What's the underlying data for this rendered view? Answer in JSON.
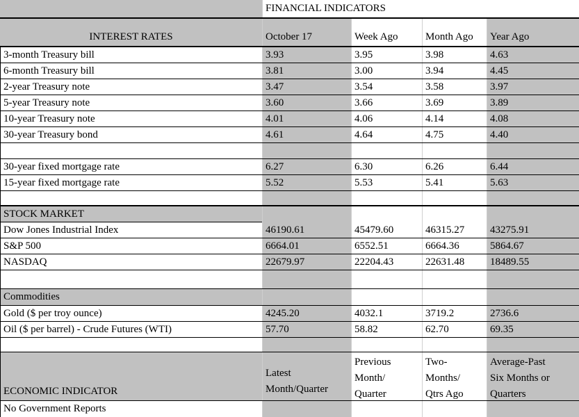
{
  "title": "FINANCIAL INDICATORS",
  "colors": {
    "cell_gray": "#c1c1c1",
    "cell_white": "#ffffff",
    "border_black": "#000000",
    "gridline": "#cfcfcf"
  },
  "header": {
    "label": "INTEREST RATES",
    "cols": [
      "October 17",
      "Week Ago",
      "Month Ago",
      "Year Ago"
    ]
  },
  "interest_rates": [
    {
      "label": "3-month Treasury bill",
      "values": [
        "3.93",
        "3.95",
        "3.98",
        "4.63"
      ]
    },
    {
      "label": "6-month Treasury bill",
      "values": [
        "3.81",
        "3.00",
        "3.94",
        "4.45"
      ]
    },
    {
      "label": "2-year Treasury note",
      "values": [
        "3.47",
        "3.54",
        "3.58",
        "3.97"
      ]
    },
    {
      "label": "5-year Treasury note",
      "values": [
        "3.60",
        "3.66",
        "3.69",
        "3.89"
      ]
    },
    {
      "label": "10-year Treasury note",
      "values": [
        "4.01",
        "4.06",
        "4.14",
        "4.08"
      ]
    },
    {
      "label": "30-year Treasury bond",
      "values": [
        "4.61",
        "4.64",
        "4.75",
        "4.40"
      ]
    }
  ],
  "mortgage_rates": [
    {
      "label": "30-year fixed mortgage rate",
      "values": [
        "6.27",
        "6.30",
        "6.26",
        "6.44"
      ]
    },
    {
      "label": "15-year fixed mortgage rate",
      "values": [
        "5.52",
        "5.53",
        "5.41",
        "5.63"
      ]
    }
  ],
  "stock_market": {
    "section_label": "STOCK MARKET",
    "rows": [
      {
        "label": "Dow Jones Industrial Index",
        "values": [
          "46190.61",
          "45479.60",
          "46315.27",
          "43275.91"
        ]
      },
      {
        "label": "S&P 500",
        "values": [
          "6664.01",
          "6552.51",
          "6664.36",
          "5864.67"
        ]
      },
      {
        "label": "NASDAQ",
        "values": [
          "22679.97",
          "22204.43",
          "22631.48",
          "18489.55"
        ]
      }
    ]
  },
  "commodities": {
    "section_label": "Commodities",
    "rows": [
      {
        "label": "Gold ($ per troy ounce)",
        "values": [
          "4245.20",
          "4032.1",
          "3719.2",
          "2736.6"
        ]
      },
      {
        "label": "Oil ($ per barrel) - Crude Futures (WTI)",
        "values": [
          "57.70",
          "58.82",
          "62.70",
          "69.35"
        ]
      }
    ]
  },
  "economic": {
    "label": "ECONOMIC INDICATOR",
    "col_headers": [
      "Latest\nMonth/Quarter",
      "Previous\nMonth/\nQuarter",
      "Two-\nMonths/\nQtrs Ago",
      "Average-Past\nSix Months or\nQuarters"
    ],
    "note": "No Government Reports"
  }
}
